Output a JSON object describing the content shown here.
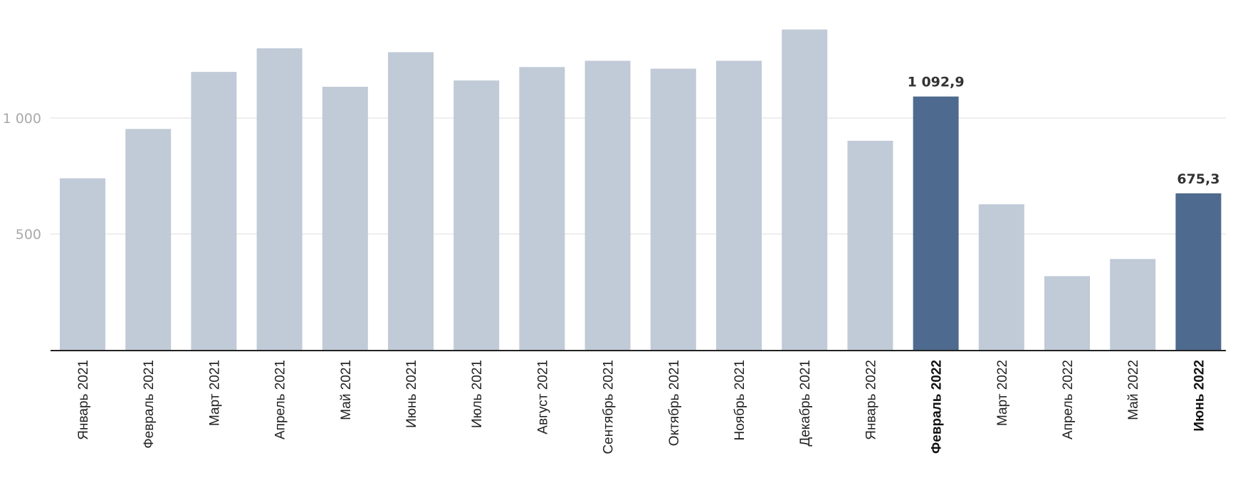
{
  "chart_data": {
    "type": "bar",
    "title": "",
    "xlabel": "",
    "ylabel": "",
    "ylim": [
      0,
      1400
    ],
    "yticks": [
      {
        "value": 500,
        "label": "500"
      },
      {
        "value": 1000,
        "label": "1 000"
      }
    ],
    "grid": "horizontal",
    "categories": [
      "Январь 2021",
      "Февраль 2021",
      "Март 2021",
      "Апрель 2021",
      "Май 2021",
      "Июнь 2021",
      "Июль 2021",
      "Август 2021",
      "Сентябрь 2021",
      "Октябрь 2021",
      "Ноябрь 2021",
      "Декабрь 2021",
      "Январь 2022",
      "Февраль 2022",
      "Март 2022",
      "Апрель 2022",
      "Май 2022",
      "Июнь 2022"
    ],
    "values": [
      740,
      953,
      1199,
      1301,
      1135,
      1284,
      1162,
      1220,
      1247,
      1213,
      1247,
      1382,
      902,
      1092.9,
      628,
      318,
      392,
      675.3
    ],
    "highlighted": [
      false,
      false,
      false,
      false,
      false,
      false,
      false,
      false,
      false,
      false,
      false,
      false,
      false,
      true,
      false,
      false,
      false,
      true
    ],
    "data_labels": [
      "",
      "",
      "",
      "",
      "",
      "",
      "",
      "",
      "",
      "",
      "",
      "",
      "",
      "1 092,9",
      "",
      "",
      "",
      "675,3"
    ],
    "colors": {
      "bar": "#c1cad7",
      "highlight": "#4e6a8e",
      "axis": "#222222",
      "grid": "#e3e3e3"
    }
  }
}
